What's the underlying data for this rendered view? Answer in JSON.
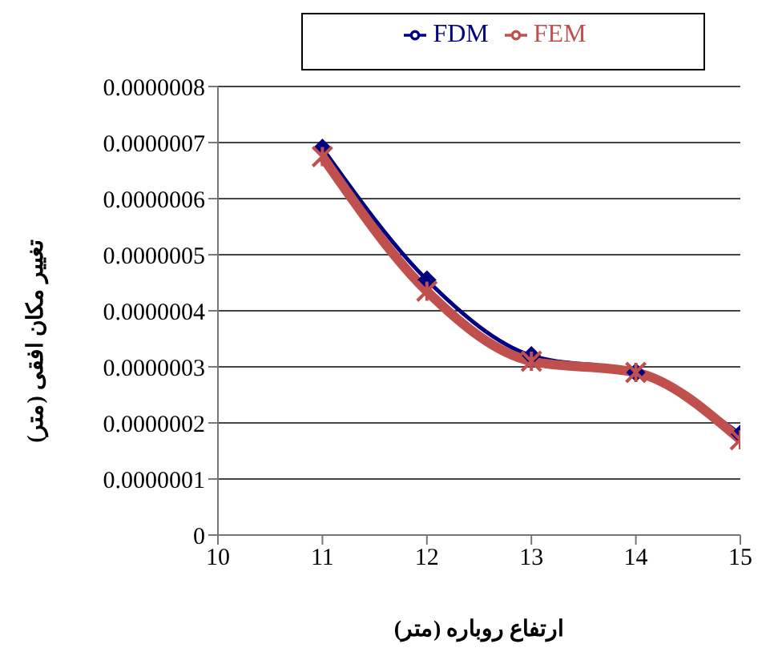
{
  "chart_data": {
    "type": "line",
    "xlabel": "ارتفاع روباره (متر)",
    "ylabel": "تغییر مکان افقی (متر)",
    "x": [
      11,
      12,
      13,
      14,
      15
    ],
    "series": [
      {
        "name": "FDM",
        "color": "#000080",
        "marker": "diamond",
        "values": [
          6.9e-07,
          4.55e-07,
          3.2e-07,
          2.9e-07,
          1.8e-07
        ]
      },
      {
        "name": "FEM",
        "color": "#c0504d",
        "marker": "cross",
        "values": [
          6.75e-07,
          4.35e-07,
          3.1e-07,
          2.9e-07,
          1.7e-07
        ]
      }
    ],
    "xlim": [
      10,
      15
    ],
    "xticks": [
      10,
      11,
      12,
      13,
      14,
      15
    ],
    "ylim": [
      0,
      8e-07
    ],
    "yticks": [
      0,
      {
        "value": 1e-07,
        "label": "0.0000001"
      },
      {
        "value": 2e-07,
        "label": "0.0000002"
      },
      {
        "value": 3e-07,
        "label": "0.0000003"
      },
      {
        "value": 4e-07,
        "label": "0.0000004"
      },
      {
        "value": 5e-07,
        "label": "0.0000005"
      },
      {
        "value": 6e-07,
        "label": "0.0000006"
      },
      {
        "value": 7e-07,
        "label": "0.0000007"
      },
      {
        "value": 8e-07,
        "label": "0.0000008"
      }
    ],
    "grid": "y",
    "legend": "top"
  }
}
